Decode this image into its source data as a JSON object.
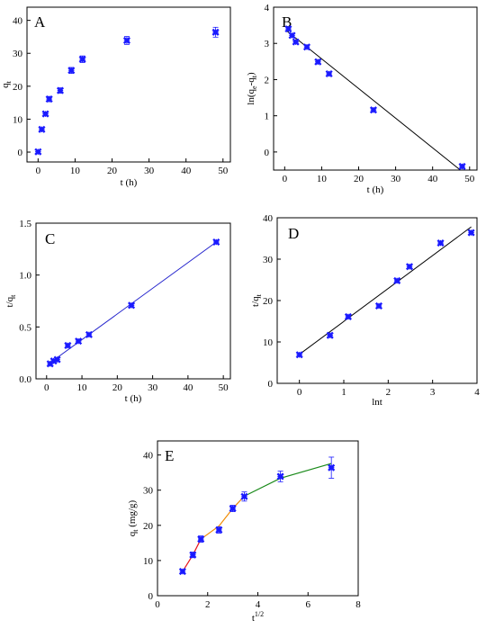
{
  "chart_data": [
    {
      "panel": "A",
      "type": "scatter",
      "xlabel": "t (h)",
      "ylabel_main": "q",
      "ylabel_sub": "t",
      "xlim": [
        -3,
        52
      ],
      "ylim": [
        -3,
        44
      ],
      "xticks": [
        0,
        10,
        20,
        30,
        40,
        50
      ],
      "yticks": [
        0,
        10,
        20,
        30,
        40
      ],
      "marker_color": "#1a1aff",
      "points": [
        {
          "x": 0,
          "y": 0.1,
          "err": 0
        },
        {
          "x": 1,
          "y": 6.9,
          "err": 0.4
        },
        {
          "x": 2,
          "y": 11.6,
          "err": 0.6
        },
        {
          "x": 3,
          "y": 16.1,
          "err": 0.8
        },
        {
          "x": 6,
          "y": 18.7,
          "err": 0.8
        },
        {
          "x": 9,
          "y": 24.8,
          "err": 0.9
        },
        {
          "x": 12,
          "y": 28.2,
          "err": 1.0
        },
        {
          "x": 24,
          "y": 33.9,
          "err": 1.2
        },
        {
          "x": 48,
          "y": 36.4,
          "err": 1.5
        }
      ],
      "fit": null
    },
    {
      "panel": "B",
      "type": "scatter",
      "xlabel": "t (h)",
      "ylabel_main": "ln(q",
      "ylabel_sub1": "e",
      "ylabel_mid": "-q",
      "ylabel_sub2": "t",
      "ylabel_end": ")",
      "xlim": [
        -3,
        52
      ],
      "ylim": [
        -0.5,
        4.0
      ],
      "xticks": [
        0,
        10,
        20,
        30,
        40,
        50
      ],
      "yticks": [
        0,
        1,
        2,
        3,
        4
      ],
      "marker_color": "#1a1aff",
      "line_color": "#000000",
      "points": [
        {
          "x": 1,
          "y": 3.4
        },
        {
          "x": 2,
          "y": 3.22
        },
        {
          "x": 3,
          "y": 3.04
        },
        {
          "x": 6,
          "y": 2.9
        },
        {
          "x": 9,
          "y": 2.49
        },
        {
          "x": 12,
          "y": 2.16
        },
        {
          "x": 24,
          "y": 1.16
        },
        {
          "x": 48,
          "y": -0.4
        }
      ],
      "fit": {
        "x1": 0.5,
        "y1": 3.35,
        "x2": 47.5,
        "y2": -0.5
      }
    },
    {
      "panel": "C",
      "type": "scatter",
      "xlabel": "t (h)",
      "ylabel_main": "t/q",
      "ylabel_sub": "t",
      "xlim": [
        -3,
        52
      ],
      "ylim": [
        0,
        1.5
      ],
      "xticks": [
        0,
        10,
        20,
        30,
        40,
        50
      ],
      "yticks": [
        0.0,
        0.5,
        1.0,
        1.5
      ],
      "ytick_labels": [
        "0.0",
        "0.5",
        "1.0",
        "1.5"
      ],
      "marker_color": "#1a1aff",
      "line_color": "#2222cc",
      "points": [
        {
          "x": 1,
          "y": 0.145
        },
        {
          "x": 2,
          "y": 0.172
        },
        {
          "x": 3,
          "y": 0.186
        },
        {
          "x": 6,
          "y": 0.321
        },
        {
          "x": 9,
          "y": 0.363
        },
        {
          "x": 12,
          "y": 0.426
        },
        {
          "x": 24,
          "y": 0.708
        },
        {
          "x": 48,
          "y": 1.318
        }
      ],
      "fit": {
        "x1": 1,
        "y1": 0.155,
        "x2": 48,
        "y2": 1.318
      }
    },
    {
      "panel": "D",
      "type": "scatter",
      "xlabel": "lnt",
      "ylabel_main": "t/q",
      "ylabel_sub": "t",
      "xlim": [
        -0.5,
        4.0
      ],
      "ylim": [
        0,
        40
      ],
      "xticks": [
        0,
        1,
        2,
        3,
        4
      ],
      "yticks": [
        0,
        10,
        20,
        30,
        40
      ],
      "marker_color": "#1a1aff",
      "line_color": "#000000",
      "points": [
        {
          "x": 0,
          "y": 6.9
        },
        {
          "x": 0.69,
          "y": 11.6
        },
        {
          "x": 1.1,
          "y": 16.1
        },
        {
          "x": 1.79,
          "y": 18.7
        },
        {
          "x": 2.2,
          "y": 24.8
        },
        {
          "x": 2.48,
          "y": 28.2
        },
        {
          "x": 3.18,
          "y": 33.9
        },
        {
          "x": 3.87,
          "y": 36.4
        }
      ],
      "fit": {
        "x1": 0,
        "y1": 7.0,
        "x2": 3.87,
        "y2": 37.8
      }
    },
    {
      "panel": "E",
      "type": "scatter",
      "xlabel_main": "t",
      "xlabel_sup": "1/2",
      "ylabel_main": "q",
      "ylabel_sub": "t",
      "ylabel_end": " (mg/g)",
      "xlim": [
        0,
        8
      ],
      "ylim": [
        0,
        44
      ],
      "xticks": [
        0,
        2,
        4,
        6,
        8
      ],
      "yticks": [
        0,
        10,
        20,
        30,
        40
      ],
      "marker_color": "#1a1aff",
      "points": [
        {
          "x": 1.0,
          "y": 6.9,
          "err": 0.5
        },
        {
          "x": 1.41,
          "y": 11.6,
          "err": 0.8
        },
        {
          "x": 1.73,
          "y": 16.1,
          "err": 0.9
        },
        {
          "x": 2.45,
          "y": 18.7,
          "err": 0.9
        },
        {
          "x": 3.0,
          "y": 24.8,
          "err": 0.9
        },
        {
          "x": 3.46,
          "y": 28.2,
          "err": 1.3
        },
        {
          "x": 4.9,
          "y": 33.9,
          "err": 1.5
        },
        {
          "x": 6.93,
          "y": 36.4,
          "err": 3.0
        }
      ],
      "segments": [
        {
          "color": "#e8141a",
          "points": [
            [
              1.0,
              6.9
            ],
            [
              1.41,
              11.6
            ],
            [
              1.73,
              16.1
            ]
          ]
        },
        {
          "color": "#f08a00",
          "points": [
            [
              1.73,
              16.1
            ],
            [
              2.45,
              19.8
            ],
            [
              3.0,
              24.8
            ],
            [
              3.46,
              28.3
            ]
          ]
        },
        {
          "color": "#1a8a1a",
          "points": [
            [
              3.46,
              28.3
            ],
            [
              4.9,
              33.4
            ],
            [
              6.93,
              37.6
            ]
          ]
        }
      ]
    }
  ]
}
